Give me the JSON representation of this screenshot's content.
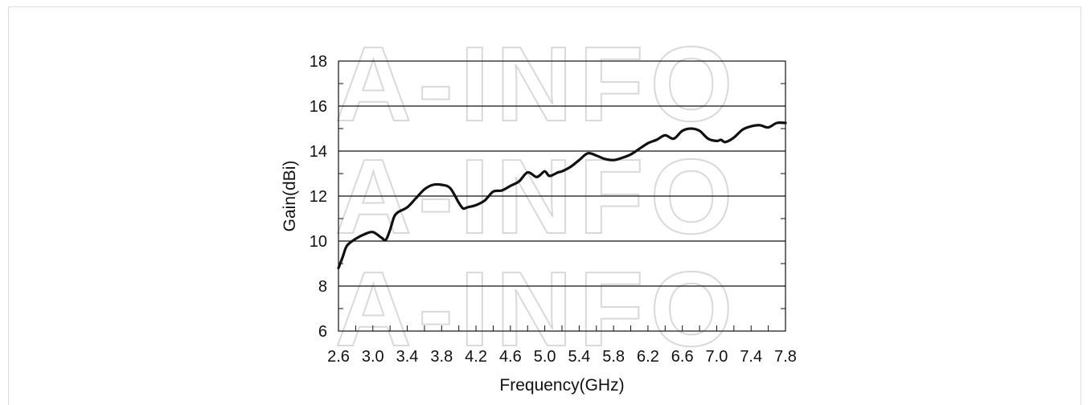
{
  "watermark": "A-INFO",
  "chart_data": {
    "type": "line",
    "title": "",
    "xlabel": "Frequency(GHz)",
    "ylabel": "Gain(dBi)",
    "xlim": [
      2.6,
      7.8
    ],
    "ylim": [
      6,
      18
    ],
    "x_ticks": [
      "2.6",
      "3.0",
      "3.4",
      "3.8",
      "4.2",
      "4.6",
      "5.0",
      "5.4",
      "5.8",
      "6.2",
      "6.6",
      "7.0",
      "7.4",
      "7.8"
    ],
    "y_ticks": [
      "6",
      "8",
      "10",
      "12",
      "14",
      "16",
      "18"
    ],
    "grid": "horizontal",
    "legend": "none",
    "series": [
      {
        "color": "#111111",
        "x": [
          2.6,
          2.65,
          2.7,
          2.8,
          2.9,
          3.0,
          3.1,
          3.15,
          3.2,
          3.25,
          3.3,
          3.4,
          3.5,
          3.6,
          3.7,
          3.8,
          3.9,
          4.0,
          4.05,
          4.1,
          4.2,
          4.3,
          4.4,
          4.5,
          4.6,
          4.7,
          4.8,
          4.9,
          4.95,
          5.0,
          5.05,
          5.1,
          5.15,
          5.2,
          5.3,
          5.4,
          5.5,
          5.6,
          5.7,
          5.8,
          5.9,
          6.0,
          6.1,
          6.2,
          6.3,
          6.4,
          6.5,
          6.6,
          6.7,
          6.8,
          6.9,
          7.0,
          7.05,
          7.1,
          7.2,
          7.3,
          7.4,
          7.5,
          7.6,
          7.7,
          7.8
        ],
        "y": [
          8.8,
          9.3,
          9.8,
          10.1,
          10.3,
          10.4,
          10.15,
          10.05,
          10.5,
          11.1,
          11.3,
          11.5,
          11.9,
          12.3,
          12.5,
          12.5,
          12.35,
          11.7,
          11.45,
          11.5,
          11.6,
          11.8,
          12.2,
          12.25,
          12.45,
          12.65,
          13.05,
          12.85,
          12.95,
          13.1,
          12.9,
          12.95,
          13.05,
          13.1,
          13.3,
          13.6,
          13.9,
          13.8,
          13.65,
          13.6,
          13.7,
          13.85,
          14.1,
          14.35,
          14.5,
          14.7,
          14.55,
          14.9,
          15.0,
          14.9,
          14.55,
          14.45,
          14.5,
          14.4,
          14.6,
          14.95,
          15.1,
          15.15,
          15.05,
          15.25,
          15.25
        ]
      }
    ]
  }
}
